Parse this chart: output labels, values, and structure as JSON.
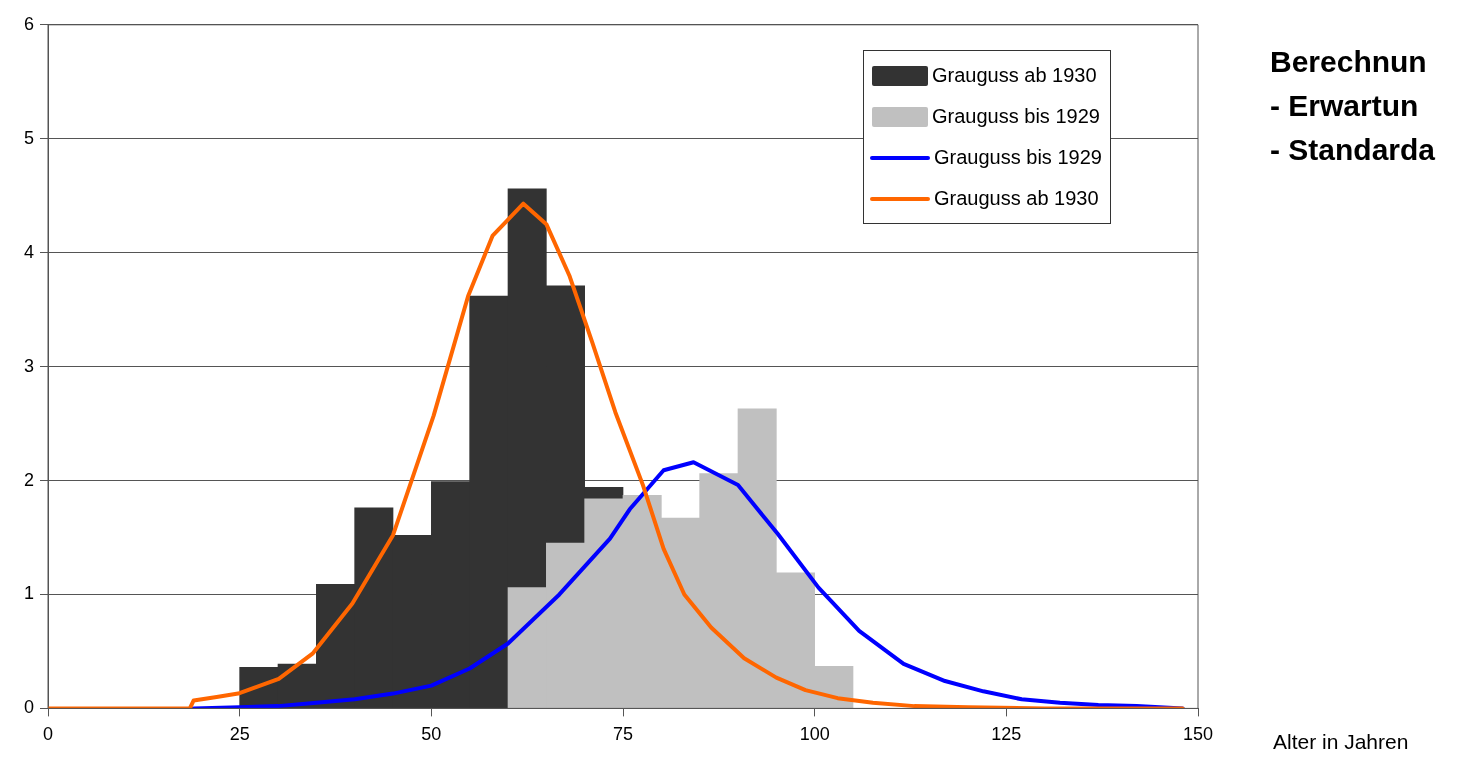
{
  "chart_data": {
    "type": "histogram",
    "xlabel": "Alter in Jahren",
    "annotations": [
      "Berechnun",
      "- Erwartun",
      "- Standarda"
    ],
    "bins": [
      25,
      30,
      35,
      40,
      45,
      50,
      55,
      60,
      65,
      70,
      75,
      80,
      85,
      90,
      95,
      100,
      105
    ],
    "series": [
      {
        "name": "Grauguss ab 1930",
        "color": "#333333",
        "values": [
          0.36,
          0.39,
          1.09,
          1.76,
          1.52,
          1.99,
          3.62,
          4.56,
          3.71,
          1.94,
          null,
          null,
          null,
          null,
          null,
          null
        ]
      },
      {
        "name": "Grauguss bis 1929",
        "color": "#c0c0c0",
        "values": [
          null,
          null,
          null,
          null,
          null,
          null,
          null,
          1.06,
          1.45,
          1.84,
          1.87,
          1.67,
          2.06,
          2.63,
          1.19,
          0.37
        ]
      },
      {
        "name": "Grauguss bis 1929",
        "type": "line",
        "color": "#0000ff",
        "x": [
          19,
          25,
          30,
          35,
          40,
          45,
          50,
          55,
          60,
          66.7,
          73.3,
          75.9,
          80.3,
          84.2,
          90,
          95.2,
          100.5,
          105.8,
          111.6,
          117,
          122,
          127,
          132,
          137,
          142,
          148
        ],
        "values": [
          0,
          0.01,
          0.02,
          0.05,
          0.08,
          0.13,
          0.2,
          0.35,
          0.57,
          1.0,
          1.49,
          1.75,
          2.09,
          2.16,
          1.96,
          1.53,
          1.06,
          0.68,
          0.39,
          0.24,
          0.15,
          0.08,
          0.05,
          0.03,
          0.02,
          0
        ]
      },
      {
        "name": "Grauguss ab 1930",
        "type": "line",
        "color": "#ff6600",
        "x": [
          0,
          18.5,
          19,
          22,
          24.8,
          30.1,
          34.5,
          39.7,
          45,
          50.3,
          54.8,
          58,
          62,
          65,
          68,
          71,
          74,
          77.6,
          80.3,
          83,
          86.5,
          90.8,
          95,
          98.8,
          103,
          107.6,
          113,
          120,
          130,
          148
        ],
        "values": [
          0,
          0,
          0.07,
          0.1,
          0.13,
          0.26,
          0.48,
          0.92,
          1.52,
          2.57,
          3.62,
          4.15,
          4.43,
          4.25,
          3.8,
          3.21,
          2.6,
          1.96,
          1.4,
          1.0,
          0.71,
          0.44,
          0.27,
          0.16,
          0.09,
          0.05,
          0.02,
          0.01,
          0,
          0
        ]
      }
    ],
    "xlim": [
      0,
      150
    ],
    "xticks": [
      0,
      25,
      50,
      75,
      100,
      125,
      150
    ],
    "ylim": [
      0,
      6
    ],
    "yticks": [
      0,
      1,
      2,
      3,
      4,
      5,
      6
    ],
    "grid": "y",
    "legend": "top right",
    "line_style": "solid",
    "marker": "none"
  }
}
